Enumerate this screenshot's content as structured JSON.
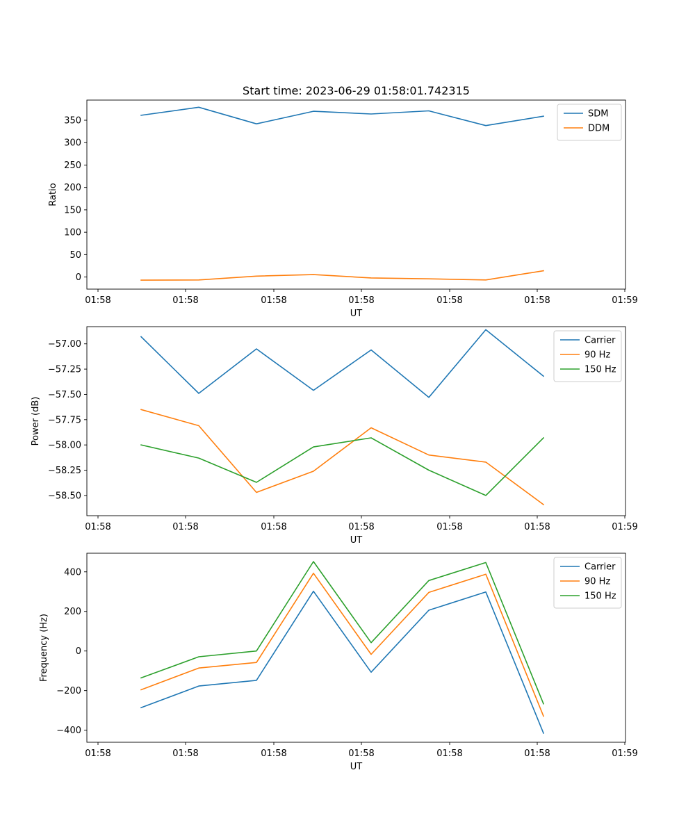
{
  "figure": {
    "title": "Start time: 2023-06-29 01:58:01.742315"
  },
  "chart_data": [
    {
      "type": "line",
      "title": "Start time: 2023-06-29 01:58:01.742315",
      "xlabel": "UT",
      "ylabel": "Ratio",
      "x_tick_labels": [
        "01:58",
        "01:58",
        "01:58",
        "01:58",
        "01:58",
        "01:58",
        "01:59"
      ],
      "y_ticks": [
        0,
        50,
        100,
        150,
        200,
        250,
        300,
        350
      ],
      "ylim": [
        -27,
        395
      ],
      "grid": false,
      "legend": "top-right",
      "series": [
        {
          "name": "SDM",
          "color": "#1f77b4",
          "values": [
            361,
            379,
            342,
            370,
            364,
            371,
            338,
            359
          ]
        },
        {
          "name": "DDM",
          "color": "#ff7f0e",
          "values": [
            -7,
            -6.5,
            2,
            5.5,
            -2,
            -4,
            -6.5,
            14
          ]
        }
      ]
    },
    {
      "type": "line",
      "title": "",
      "xlabel": "UT",
      "ylabel": "Power (dB)",
      "x_tick_labels": [
        "01:58",
        "01:58",
        "01:58",
        "01:58",
        "01:58",
        "01:58",
        "01:59"
      ],
      "y_ticks": [
        -58.5,
        -58.25,
        -58.0,
        -57.75,
        -57.5,
        -57.25,
        -57.0
      ],
      "y_tick_labels": [
        "−58.50",
        "−58.25",
        "−58.00",
        "−57.75",
        "−57.50",
        "−57.25",
        "−57.00"
      ],
      "ylim": [
        -58.7,
        -56.83
      ],
      "grid": false,
      "legend": "top-right",
      "series": [
        {
          "name": "Carrier",
          "color": "#1f77b4",
          "values": [
            -56.93,
            -57.49,
            -57.05,
            -57.46,
            -57.06,
            -57.53,
            -56.86,
            -57.32
          ]
        },
        {
          "name": "90 Hz",
          "color": "#ff7f0e",
          "values": [
            -57.65,
            -57.81,
            -58.47,
            -58.26,
            -57.83,
            -58.1,
            -58.17,
            -58.59
          ]
        },
        {
          "name": "150 Hz",
          "color": "#2ca02c",
          "values": [
            -58.0,
            -58.13,
            -58.37,
            -58.02,
            -57.93,
            -58.25,
            -58.5,
            -57.93
          ]
        }
      ]
    },
    {
      "type": "line",
      "title": "",
      "xlabel": "UT",
      "ylabel": "Frequency (Hz)",
      "x_tick_labels": [
        "01:58",
        "01:58",
        "01:58",
        "01:58",
        "01:58",
        "01:58",
        "01:59"
      ],
      "y_ticks": [
        -400,
        -200,
        0,
        200,
        400
      ],
      "y_tick_labels": [
        "−400",
        "−200",
        "0",
        "200",
        "400"
      ],
      "ylim": [
        -461,
        494
      ],
      "grid": false,
      "legend": "top-right",
      "series": [
        {
          "name": "Carrier",
          "color": "#1f77b4",
          "values": [
            -286,
            -177,
            -148,
            302,
            -107,
            206,
            298,
            -415
          ]
        },
        {
          "name": "90 Hz",
          "color": "#ff7f0e",
          "values": [
            -196,
            -86,
            -58,
            393,
            -17,
            296,
            388,
            -329
          ]
        },
        {
          "name": "150 Hz",
          "color": "#2ca02c",
          "values": [
            -136,
            -29,
            0,
            452,
            42,
            356,
            447,
            -267
          ]
        }
      ]
    }
  ]
}
